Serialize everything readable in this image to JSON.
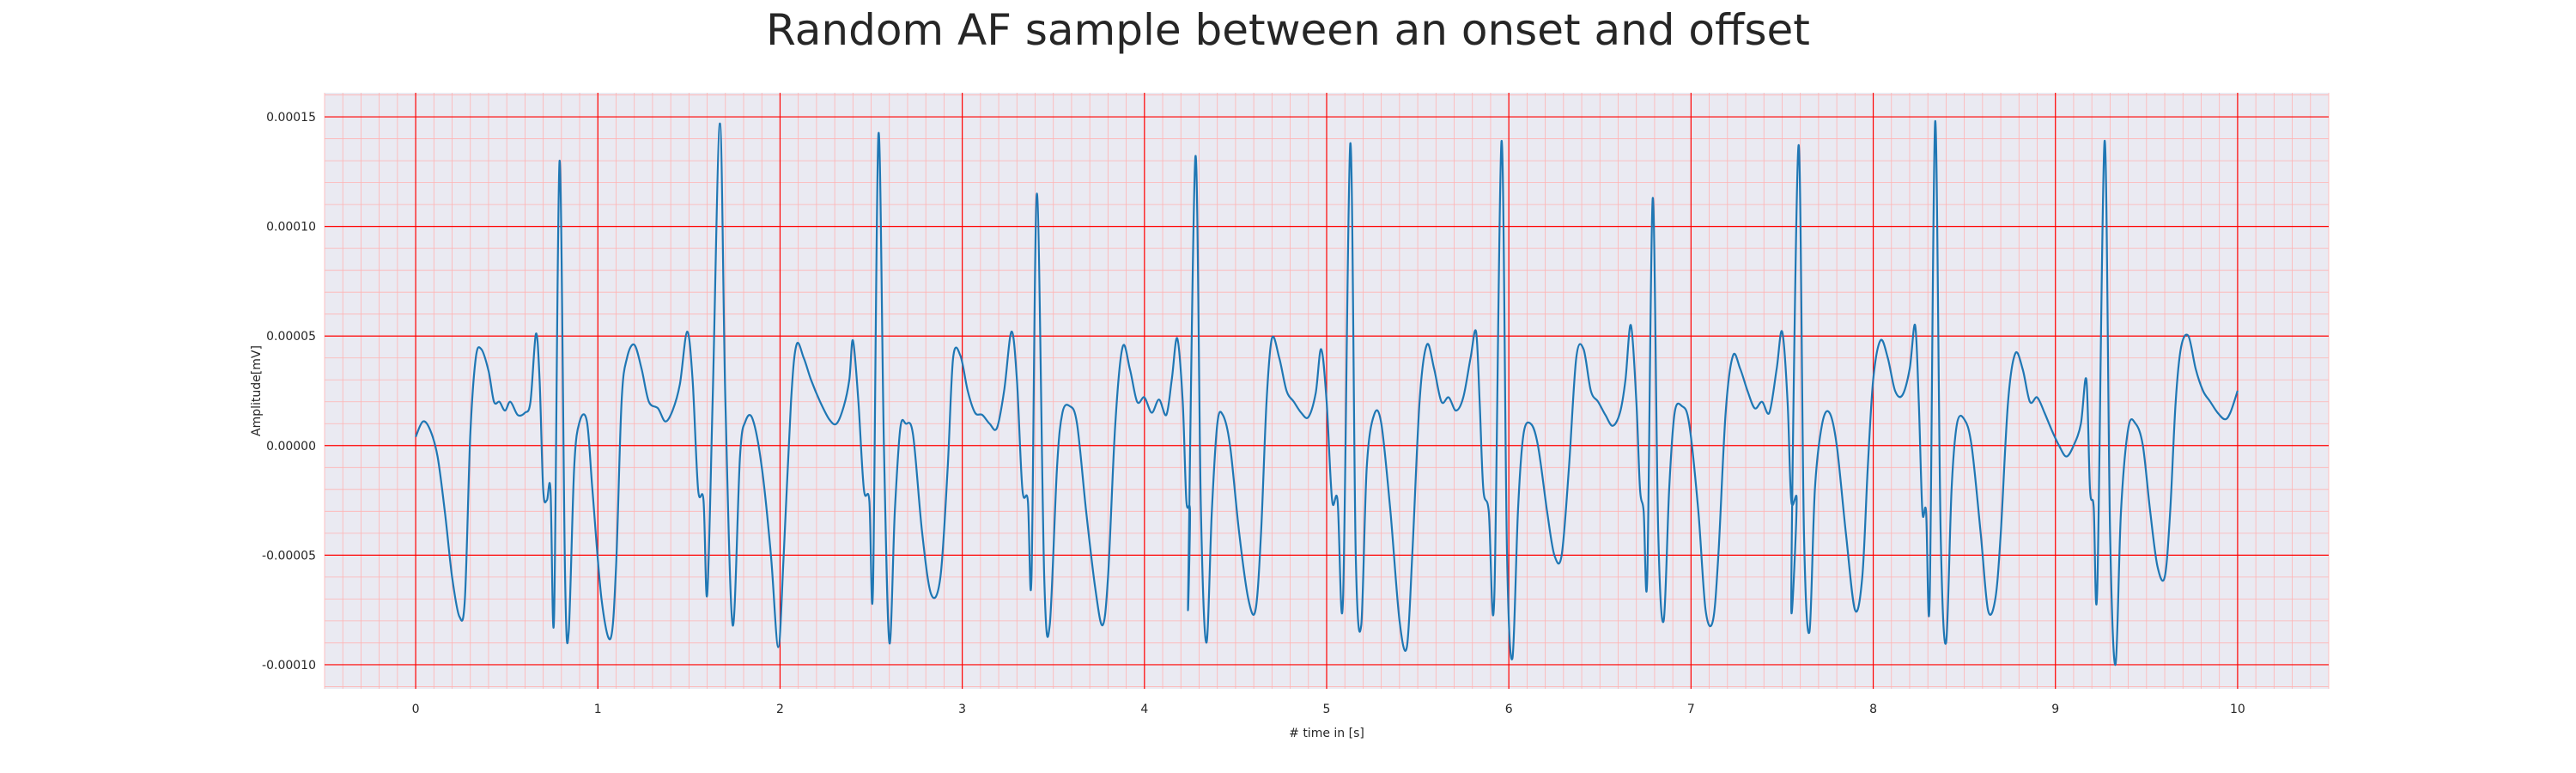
{
  "chart_data": {
    "type": "line",
    "title": "Random AF sample between an onset and offset",
    "xlabel": "# time in [s]",
    "ylabel": "Amplitude[mV]",
    "xlim": [
      -0.5,
      10.5
    ],
    "ylim": [
      -0.000111,
      0.000161
    ],
    "x_ticks": [
      0,
      1,
      2,
      3,
      4,
      5,
      6,
      7,
      8,
      9,
      10
    ],
    "x_tick_labels": [
      "0",
      "1",
      "2",
      "3",
      "4",
      "5",
      "6",
      "7",
      "8",
      "9",
      "10"
    ],
    "y_ticks": [
      -0.0001,
      -5e-05,
      0.0,
      5e-05,
      0.0001,
      0.00015
    ],
    "y_tick_labels": [
      "-0.00010",
      "-0.00005",
      "0.00000",
      "0.00005",
      "0.00010",
      "0.00015"
    ],
    "grid": true,
    "minor_grid": true,
    "colors": {
      "background": "#eaeaf2",
      "major_grid": "#ff0000",
      "minor_grid": "#ffb3b3",
      "line": "#1f77b4"
    },
    "series": [
      {
        "values": [
          [
            0.0,
            4e-06
          ],
          [
            0.04,
            1.1e-05
          ],
          [
            0.08,
            7e-06
          ],
          [
            0.12,
            -5e-06
          ],
          [
            0.16,
            -3e-05
          ],
          [
            0.2,
            -6e-05
          ],
          [
            0.24,
            -7.8e-05
          ],
          [
            0.27,
            -7e-05
          ],
          [
            0.3,
            5e-06
          ],
          [
            0.33,
            4e-05
          ],
          [
            0.36,
            4.4e-05
          ],
          [
            0.4,
            3.4e-05
          ],
          [
            0.43,
            2e-05
          ],
          [
            0.46,
            2e-05
          ],
          [
            0.49,
            1.6e-05
          ],
          [
            0.52,
            2e-05
          ],
          [
            0.56,
            1.4e-05
          ],
          [
            0.6,
            1.5e-05
          ],
          [
            0.63,
            2e-05
          ],
          [
            0.66,
            5.1e-05
          ],
          [
            0.68,
            3e-05
          ],
          [
            0.7,
            -2e-05
          ],
          [
            0.72,
            -2.5e-05
          ],
          [
            0.74,
            -2e-05
          ],
          [
            0.76,
            -7.8e-05
          ],
          [
            0.79,
            0.00013
          ],
          [
            0.82,
            -6e-05
          ],
          [
            0.84,
            -8.5e-05
          ],
          [
            0.87,
            -1e-05
          ],
          [
            0.9,
            1.1e-05
          ],
          [
            0.94,
            1.1e-05
          ],
          [
            0.97,
            -2e-05
          ],
          [
            1.02,
            -7e-05
          ],
          [
            1.07,
            -8.8e-05
          ],
          [
            1.1,
            -5.5e-05
          ],
          [
            1.13,
            2e-05
          ],
          [
            1.16,
            4e-05
          ],
          [
            1.2,
            4.6e-05
          ],
          [
            1.24,
            3.5e-05
          ],
          [
            1.28,
            2e-05
          ],
          [
            1.33,
            1.7e-05
          ],
          [
            1.37,
            1.1e-05
          ],
          [
            1.41,
            1.6e-05
          ],
          [
            1.45,
            2.8e-05
          ],
          [
            1.49,
            5.2e-05
          ],
          [
            1.52,
            3e-05
          ],
          [
            1.55,
            -2e-05
          ],
          [
            1.58,
            -2.5e-05
          ],
          [
            1.6,
            -6.8e-05
          ],
          [
            1.63,
            2e-05
          ],
          [
            1.67,
            0.000147
          ],
          [
            1.7,
            2e-05
          ],
          [
            1.74,
            -8.2e-05
          ],
          [
            1.78,
            -5e-06
          ],
          [
            1.81,
            1.1e-05
          ],
          [
            1.85,
            1.2e-05
          ],
          [
            1.9,
            -1e-05
          ],
          [
            1.95,
            -5e-05
          ],
          [
            1.99,
            -9.2e-05
          ],
          [
            2.02,
            -5e-05
          ],
          [
            2.06,
            2e-05
          ],
          [
            2.09,
            4.6e-05
          ],
          [
            2.13,
            4e-05
          ],
          [
            2.17,
            3e-05
          ],
          [
            2.22,
            2e-05
          ],
          [
            2.27,
            1.2e-05
          ],
          [
            2.31,
            1e-05
          ],
          [
            2.35,
            1.8e-05
          ],
          [
            2.38,
            3e-05
          ],
          [
            2.4,
            4.8e-05
          ],
          [
            2.43,
            2e-05
          ],
          [
            2.46,
            -2e-05
          ],
          [
            2.49,
            -2.5e-05
          ],
          [
            2.51,
            -6.5e-05
          ],
          [
            2.54,
            0.000142
          ],
          [
            2.57,
            0.0
          ],
          [
            2.6,
            -9e-05
          ],
          [
            2.63,
            -3e-05
          ],
          [
            2.66,
            8e-06
          ],
          [
            2.69,
            1e-05
          ],
          [
            2.73,
            5e-06
          ],
          [
            2.78,
            -4e-05
          ],
          [
            2.83,
            -6.8e-05
          ],
          [
            2.88,
            -6e-05
          ],
          [
            2.92,
            -1e-05
          ],
          [
            2.95,
            4e-05
          ],
          [
            2.99,
            4.1e-05
          ],
          [
            3.03,
            2.5e-05
          ],
          [
            3.07,
            1.5e-05
          ],
          [
            3.11,
            1.4e-05
          ],
          [
            3.15,
            1e-05
          ],
          [
            3.19,
            8e-06
          ],
          [
            3.23,
            2.5e-05
          ],
          [
            3.27,
            5.2e-05
          ],
          [
            3.3,
            3e-05
          ],
          [
            3.33,
            -2e-05
          ],
          [
            3.36,
            -2.5e-05
          ],
          [
            3.38,
            -6e-05
          ],
          [
            3.41,
            0.000115
          ],
          [
            3.45,
            -6e-05
          ],
          [
            3.48,
            -8.2e-05
          ],
          [
            3.52,
            -1e-05
          ],
          [
            3.55,
            1.5e-05
          ],
          [
            3.59,
            1.8e-05
          ],
          [
            3.63,
            1e-05
          ],
          [
            3.68,
            -3e-05
          ],
          [
            3.73,
            -6.5e-05
          ],
          [
            3.77,
            -8.2e-05
          ],
          [
            3.8,
            -6e-05
          ],
          [
            3.84,
            1e-05
          ],
          [
            3.88,
            4.5e-05
          ],
          [
            3.92,
            3.5e-05
          ],
          [
            3.96,
            2e-05
          ],
          [
            4.0,
            2.2e-05
          ],
          [
            4.04,
            1.5e-05
          ],
          [
            4.08,
            2.1e-05
          ],
          [
            4.12,
            1.4e-05
          ],
          [
            4.15,
            3e-05
          ],
          [
            4.18,
            4.9e-05
          ],
          [
            4.21,
            2e-05
          ],
          [
            4.23,
            -2.5e-05
          ],
          [
            4.25,
            -3e-05
          ],
          [
            4.24,
            -6.8e-05
          ],
          [
            4.28,
            0.000132
          ],
          [
            4.31,
            -3e-05
          ],
          [
            4.34,
            -9e-05
          ],
          [
            4.37,
            -3e-05
          ],
          [
            4.4,
            1e-05
          ],
          [
            4.43,
            1.4e-05
          ],
          [
            4.47,
            0.0
          ],
          [
            4.52,
            -4e-05
          ],
          [
            4.57,
            -7e-05
          ],
          [
            4.61,
            -7.5e-05
          ],
          [
            4.64,
            -4e-05
          ],
          [
            4.67,
            2e-05
          ],
          [
            4.7,
            4.9e-05
          ],
          [
            4.74,
            4e-05
          ],
          [
            4.78,
            2.5e-05
          ],
          [
            4.82,
            2e-05
          ],
          [
            4.86,
            1.5e-05
          ],
          [
            4.9,
            1.3e-05
          ],
          [
            4.94,
            2.4e-05
          ],
          [
            4.97,
            4.4e-05
          ],
          [
            5.0,
            2e-05
          ],
          [
            5.03,
            -2.5e-05
          ],
          [
            5.06,
            -2.5e-05
          ],
          [
            5.09,
            -7e-05
          ],
          [
            5.13,
            0.000138
          ],
          [
            5.16,
            -5e-05
          ],
          [
            5.19,
            -8.2e-05
          ],
          [
            5.22,
            -1e-05
          ],
          [
            5.26,
            1.4e-05
          ],
          [
            5.3,
            1e-05
          ],
          [
            5.35,
            -3e-05
          ],
          [
            5.4,
            -8e-05
          ],
          [
            5.44,
            -9.2e-05
          ],
          [
            5.47,
            -5e-05
          ],
          [
            5.51,
            2e-05
          ],
          [
            5.55,
            4.6e-05
          ],
          [
            5.59,
            3.5e-05
          ],
          [
            5.63,
            2e-05
          ],
          [
            5.67,
            2.2e-05
          ],
          [
            5.71,
            1.6e-05
          ],
          [
            5.75,
            2.2e-05
          ],
          [
            5.79,
            4e-05
          ],
          [
            5.82,
            5.2e-05
          ],
          [
            5.84,
            2e-05
          ],
          [
            5.86,
            -2e-05
          ],
          [
            5.89,
            -3e-05
          ],
          [
            5.92,
            -7e-05
          ],
          [
            5.96,
            0.000139
          ],
          [
            5.99,
            -5e-05
          ],
          [
            6.02,
            -9.7e-05
          ],
          [
            6.05,
            -3e-05
          ],
          [
            6.08,
            5e-06
          ],
          [
            6.12,
            1e-05
          ],
          [
            6.16,
            0.0
          ],
          [
            6.21,
            -3e-05
          ],
          [
            6.25,
            -5e-05
          ],
          [
            6.29,
            -5e-05
          ],
          [
            6.33,
            -1e-05
          ],
          [
            6.37,
            4e-05
          ],
          [
            6.41,
            4.4e-05
          ],
          [
            6.45,
            2.5e-05
          ],
          [
            6.49,
            2e-05
          ],
          [
            6.53,
            1.4e-05
          ],
          [
            6.57,
            9e-06
          ],
          [
            6.61,
            1.5e-05
          ],
          [
            6.64,
            3e-05
          ],
          [
            6.67,
            5.5e-05
          ],
          [
            6.7,
            2e-05
          ],
          [
            6.72,
            -2e-05
          ],
          [
            6.74,
            -3e-05
          ],
          [
            6.76,
            -6e-05
          ],
          [
            6.79,
            0.000113
          ],
          [
            6.82,
            -4e-05
          ],
          [
            6.85,
            -8e-05
          ],
          [
            6.88,
            -2e-05
          ],
          [
            6.91,
            1.5e-05
          ],
          [
            6.95,
            1.8e-05
          ],
          [
            6.99,
            1e-05
          ],
          [
            7.04,
            -3e-05
          ],
          [
            7.08,
            -7.5e-05
          ],
          [
            7.12,
            -8e-05
          ],
          [
            7.15,
            -5e-05
          ],
          [
            7.19,
            1.5e-05
          ],
          [
            7.23,
            4.1e-05
          ],
          [
            7.27,
            3.5e-05
          ],
          [
            7.31,
            2.5e-05
          ],
          [
            7.35,
            1.7e-05
          ],
          [
            7.39,
            2e-05
          ],
          [
            7.43,
            1.5e-05
          ],
          [
            7.47,
            3.5e-05
          ],
          [
            7.5,
            5.2e-05
          ],
          [
            7.53,
            2e-05
          ],
          [
            7.55,
            -2.5e-05
          ],
          [
            7.58,
            -2.5e-05
          ],
          [
            7.55,
            -7e-05
          ],
          [
            7.59,
            0.000137
          ],
          [
            7.62,
            -4e-05
          ],
          [
            7.65,
            -8.5e-05
          ],
          [
            7.68,
            -2e-05
          ],
          [
            7.72,
            1e-05
          ],
          [
            7.76,
            1.5e-05
          ],
          [
            7.8,
            0.0
          ],
          [
            7.85,
            -4e-05
          ],
          [
            7.9,
            -7.5e-05
          ],
          [
            7.94,
            -6e-05
          ],
          [
            7.97,
            -1e-05
          ],
          [
            8.0,
            3e-05
          ],
          [
            8.04,
            4.8e-05
          ],
          [
            8.08,
            4e-05
          ],
          [
            8.12,
            2.5e-05
          ],
          [
            8.16,
            2.3e-05
          ],
          [
            8.2,
            3.5e-05
          ],
          [
            8.23,
            5.5e-05
          ],
          [
            8.25,
            2e-05
          ],
          [
            8.27,
            -3e-05
          ],
          [
            8.29,
            -3e-05
          ],
          [
            8.31,
            -7e-05
          ],
          [
            8.34,
            0.000148
          ],
          [
            8.37,
            -4e-05
          ],
          [
            8.4,
            -9e-05
          ],
          [
            8.43,
            -2e-05
          ],
          [
            8.46,
            1e-05
          ],
          [
            8.5,
            1.2e-05
          ],
          [
            8.54,
            0.0
          ],
          [
            8.59,
            -4e-05
          ],
          [
            8.63,
            -7.5e-05
          ],
          [
            8.67,
            -7e-05
          ],
          [
            8.7,
            -4e-05
          ],
          [
            8.74,
            2e-05
          ],
          [
            8.78,
            4.2e-05
          ],
          [
            8.82,
            3.5e-05
          ],
          [
            8.86,
            2e-05
          ],
          [
            8.9,
            2.2e-05
          ],
          [
            8.94,
            1.5e-05
          ],
          [
            8.98,
            7e-06
          ],
          [
            9.02,
            0.0
          ],
          [
            9.06,
            -5e-06
          ],
          [
            9.1,
            0.0
          ],
          [
            9.14,
            1e-05
          ],
          [
            9.17,
            3e-05
          ],
          [
            9.19,
            -2e-05
          ],
          [
            9.21,
            -2.8e-05
          ],
          [
            9.23,
            -6.5e-05
          ],
          [
            9.27,
            0.000139
          ],
          [
            9.3,
            -4e-05
          ],
          [
            9.33,
            -0.0001
          ],
          [
            9.36,
            -3e-05
          ],
          [
            9.4,
            8e-06
          ],
          [
            9.44,
            1e-05
          ],
          [
            9.48,
            0.0
          ],
          [
            9.52,
            -3e-05
          ],
          [
            9.56,
            -5.5e-05
          ],
          [
            9.6,
            -6e-05
          ],
          [
            9.63,
            -3e-05
          ],
          [
            9.66,
            2e-05
          ],
          [
            9.69,
            4.5e-05
          ],
          [
            9.73,
            5e-05
          ],
          [
            9.77,
            3.5e-05
          ],
          [
            9.81,
            2.5e-05
          ],
          [
            9.85,
            2e-05
          ],
          [
            9.89,
            1.5e-05
          ],
          [
            9.93,
            1.2e-05
          ],
          [
            9.96,
            1.5e-05
          ],
          [
            10.0,
            2.5e-05
          ]
        ]
      }
    ]
  }
}
